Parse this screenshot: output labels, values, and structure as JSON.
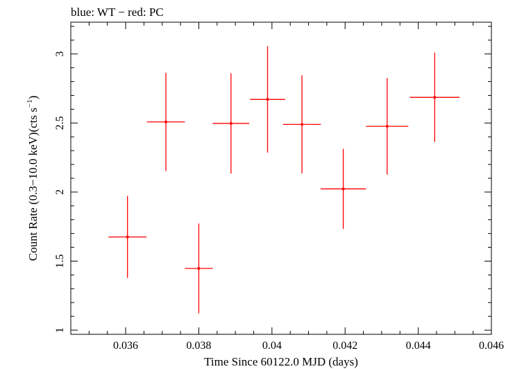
{
  "chart_data": {
    "type": "scatter",
    "title": "blue: WT − red: PC",
    "xlabel": "Time Since 60122.0 MJD (days)",
    "ylabel_main": "Count Rate (0.3−10.0 keV)(cts s",
    "ylabel_sup": "−1",
    "ylabel_end": ")",
    "xlim": [
      0.0345,
      0.046
    ],
    "ylim": [
      0.97,
      3.23
    ],
    "x_major_ticks": [
      0.036,
      0.038,
      0.04,
      0.042,
      0.044,
      0.046
    ],
    "x_tick_labels": [
      "0.036",
      "0.038",
      "0.04",
      "0.042",
      "0.044",
      "0.046"
    ],
    "y_major_ticks": [
      1,
      1.5,
      2,
      2.5,
      3
    ],
    "y_tick_labels": [
      "1",
      "1.5",
      "2",
      "2.5",
      "3"
    ],
    "grid": false,
    "series": [
      {
        "color": "#ff0000",
        "points": [
          {
            "x": 0.03605,
            "xerr": 0.00052,
            "y": 1.675,
            "yerr": 0.297
          },
          {
            "x": 0.0371,
            "xerr": 0.00052,
            "y": 2.508,
            "yerr": 0.355
          },
          {
            "x": 0.038,
            "xerr": 0.00038,
            "y": 1.447,
            "yerr": 0.325
          },
          {
            "x": 0.03888,
            "xerr": 0.0005,
            "y": 2.497,
            "yerr": 0.363
          },
          {
            "x": 0.03988,
            "xerr": 0.00048,
            "y": 2.671,
            "yerr": 0.385
          },
          {
            "x": 0.04082,
            "xerr": 0.00052,
            "y": 2.49,
            "yerr": 0.355
          },
          {
            "x": 0.04195,
            "xerr": 0.00062,
            "y": 2.023,
            "yerr": 0.29
          },
          {
            "x": 0.04315,
            "xerr": 0.00058,
            "y": 2.476,
            "yerr": 0.35
          },
          {
            "x": 0.04445,
            "xerr": 0.00068,
            "y": 2.686,
            "yerr": 0.323
          }
        ]
      }
    ]
  }
}
